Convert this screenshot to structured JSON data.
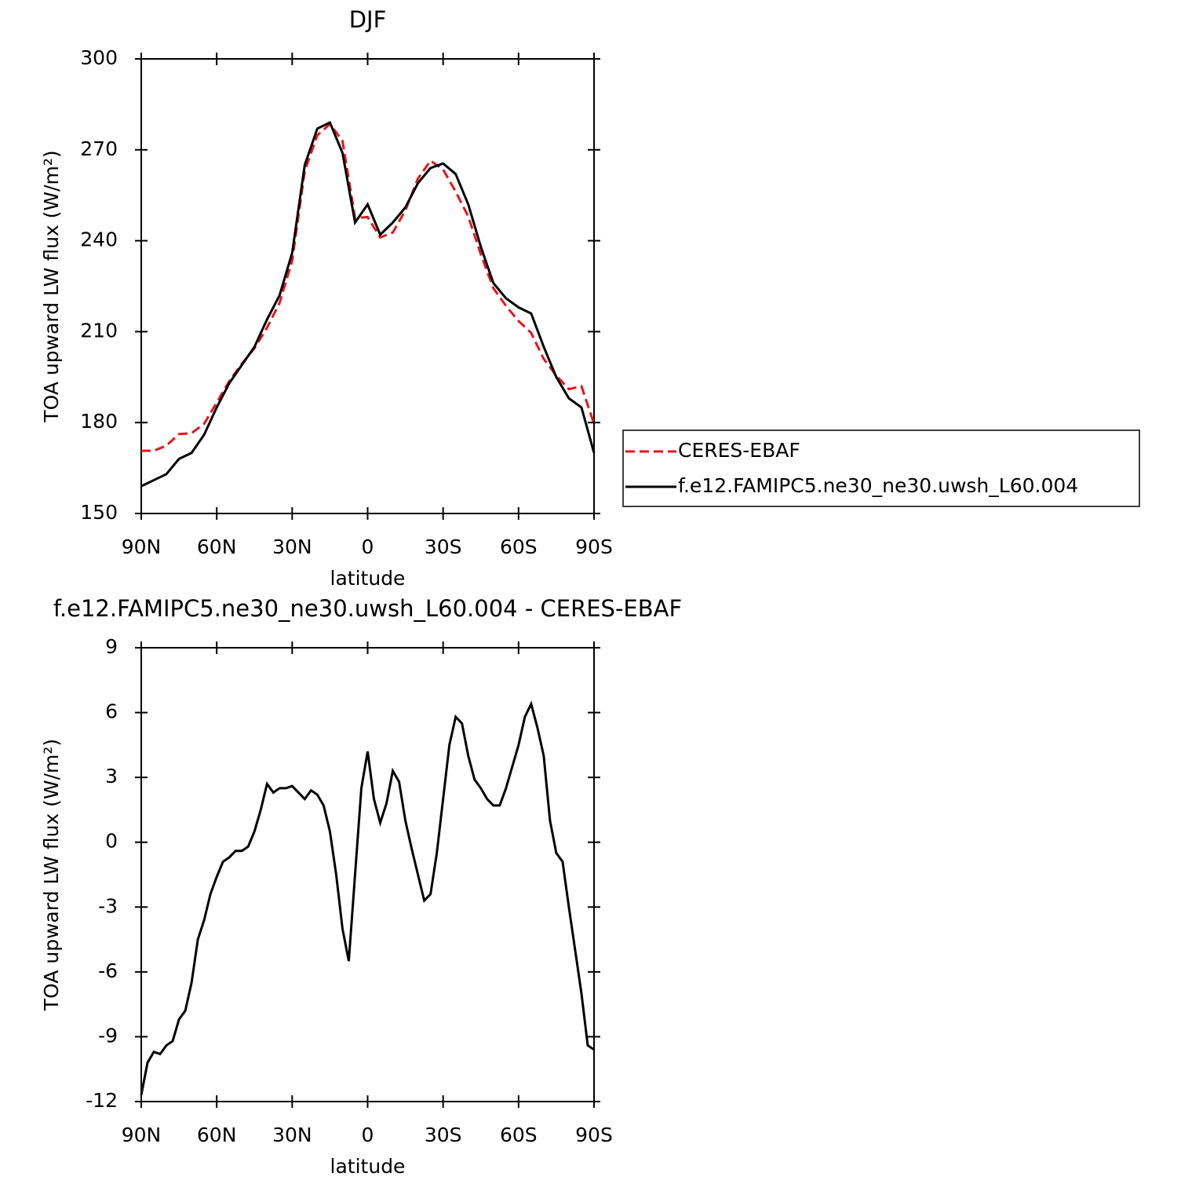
{
  "chart_data": [
    {
      "type": "line",
      "title": "DJF",
      "xlabel": "latitude",
      "ylabel": "TOA upward LW flux (W/m²)",
      "x": [
        90,
        85,
        80,
        75,
        70,
        65,
        60,
        55,
        50,
        45,
        40,
        35,
        30,
        25,
        20,
        15,
        10,
        5,
        0,
        -5,
        -10,
        -15,
        -20,
        -25,
        -30,
        -35,
        -40,
        -45,
        -50,
        -55,
        -60,
        -65,
        -70,
        -75,
        -80,
        -85,
        -90
      ],
      "series": [
        {
          "name": "CERES-EBAF",
          "color": "#e8141c",
          "style": "dashed",
          "values": [
            170.7,
            170.7,
            172.4,
            176.2,
            176.5,
            179.6,
            186.6,
            193.7,
            199.4,
            204.5,
            211.3,
            219.5,
            233.4,
            263,
            274.8,
            278.5,
            273,
            247.5,
            247.8,
            241.1,
            242.7,
            250,
            260.5,
            266.4,
            263.5,
            256.2,
            248,
            235.5,
            224.3,
            218.5,
            213.5,
            209.6,
            201,
            195.5,
            191,
            192,
            179.6
          ]
        },
        {
          "name": "f.e12.FAMIPC5.ne30_ne30.uwsh_L60.004",
          "color": "#000000",
          "style": "solid",
          "values": [
            159,
            161,
            163,
            168,
            170,
            176,
            185,
            193,
            199,
            205,
            214,
            222,
            236,
            265,
            277,
            279,
            269,
            246,
            252,
            242,
            246,
            251,
            259,
            264,
            265.5,
            262,
            252,
            238,
            226,
            221,
            218,
            216,
            205,
            195,
            188,
            185,
            170
          ]
        }
      ],
      "xlim": [
        90,
        -90
      ],
      "xticks": [
        {
          "value": 90,
          "label": "90N"
        },
        {
          "value": 60,
          "label": "60N"
        },
        {
          "value": 30,
          "label": "30N"
        },
        0,
        {
          "value": -30,
          "label": "30S"
        },
        {
          "value": -60,
          "label": "60S"
        },
        {
          "value": -90,
          "label": "90S"
        }
      ],
      "ylim": [
        150,
        300
      ],
      "yticks": [
        150,
        180,
        210,
        240,
        270,
        300
      ],
      "legend": "outside-right"
    },
    {
      "type": "line",
      "title": "f.e12.FAMIPC5.ne30_ne30.uwsh_L60.004 - CERES-EBAF",
      "xlabel": "latitude",
      "ylabel": "TOA upward LW flux (W/m²)",
      "x": [
        90,
        87.5,
        85,
        82.5,
        80,
        77.5,
        75,
        72.5,
        70,
        67.5,
        65,
        62.5,
        60,
        57.5,
        55,
        52.5,
        50,
        47.5,
        45,
        42.5,
        40,
        37.5,
        35,
        32.5,
        30,
        27.5,
        25,
        22.5,
        20,
        17.5,
        15,
        12.5,
        10,
        7.5,
        5,
        2.5,
        0,
        -2.5,
        -5,
        -7.5,
        -10,
        -12.5,
        -15,
        -17.5,
        -20,
        -22.5,
        -25,
        -27.5,
        -30,
        -32.5,
        -35,
        -37.5,
        -40,
        -42.5,
        -45,
        -47.5,
        -50,
        -52.5,
        -55,
        -57.5,
        -60,
        -62.5,
        -65,
        -67.5,
        -70,
        -72.5,
        -75,
        -77.5,
        -80,
        -82.5,
        -85,
        -87.5,
        -90
      ],
      "values": [
        -11.7,
        -10.2,
        -9.7,
        -9.8,
        -9.4,
        -9.2,
        -8.2,
        -7.8,
        -6.5,
        -4.5,
        -3.6,
        -2.4,
        -1.6,
        -0.9,
        -0.7,
        -0.4,
        -0.4,
        -0.2,
        0.5,
        1.5,
        2.7,
        2.3,
        2.5,
        2.5,
        2.6,
        2.3,
        2,
        2.4,
        2.2,
        1.7,
        0.5,
        -1.5,
        -4,
        -5.5,
        -1.5,
        2.5,
        4.2,
        2,
        0.9,
        1.8,
        3.3,
        2.8,
        1,
        -0.3,
        -1.5,
        -2.7,
        -2.4,
        -0.5,
        2,
        4.5,
        5.8,
        5.5,
        4,
        2.9,
        2.5,
        2,
        1.7,
        1.7,
        2.5,
        3.5,
        4.5,
        5.8,
        6.4,
        5.3,
        4,
        1,
        -0.5,
        -0.9,
        -3,
        -5,
        -7,
        -9.4,
        -9.6
      ],
      "color": "#000000",
      "xlim": [
        90,
        -90
      ],
      "xticks": [
        {
          "value": 90,
          "label": "90N"
        },
        {
          "value": 60,
          "label": "60N"
        },
        {
          "value": 30,
          "label": "30N"
        },
        0,
        {
          "value": -30,
          "label": "30S"
        },
        {
          "value": -60,
          "label": "60S"
        },
        {
          "value": -90,
          "label": "90S"
        }
      ],
      "ylim": [
        -12,
        9
      ],
      "yticks": [
        -12,
        -9,
        -6,
        -3,
        0,
        3,
        6,
        9
      ]
    }
  ]
}
